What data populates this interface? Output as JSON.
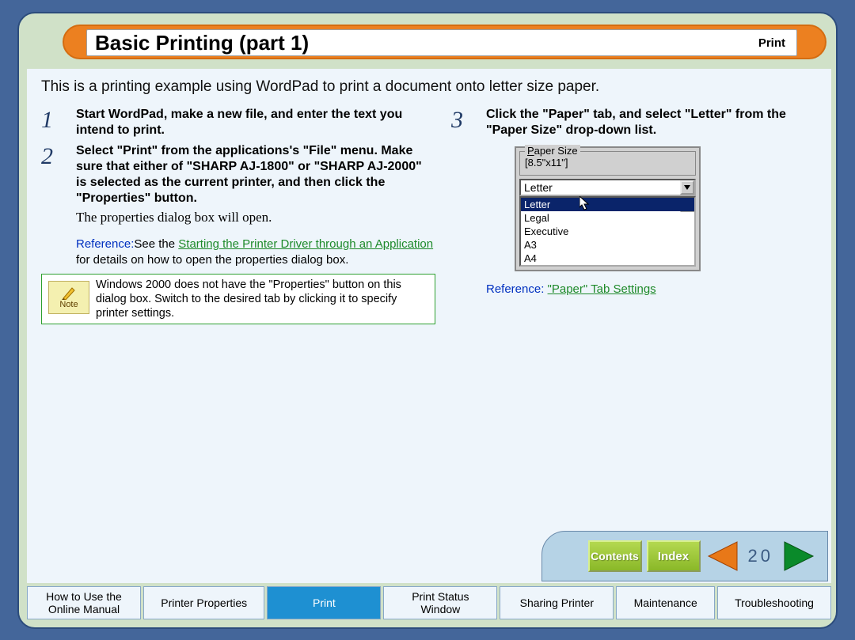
{
  "colors": {
    "page_bg": "#44669a",
    "panel_bg": "#d0e1c8",
    "content_bg": "#eef5fb",
    "title_pill": "#ec8020",
    "step_num": "#203a66",
    "ref_label": "#0030c0",
    "ref_link": "#1e8a2a",
    "nav_panel": "#b6d3e6",
    "btn_green_top": "#b4d850",
    "btn_green_bot": "#8ab828",
    "tab_active": "#1e90d2",
    "list_selected_bg": "#0a246a"
  },
  "title": "Basic Printing (part 1)",
  "section": "Print",
  "intro": "This is a printing example using WordPad to print a document onto letter size paper.",
  "steps": {
    "s1": {
      "num": "1",
      "text": "Start WordPad, make a new file, and enter the text you intend to print."
    },
    "s2": {
      "num": "2",
      "text": "Select \"Print\" from the applications's \"File\" menu. Make sure that either of \"SHARP AJ-1800\" or \"SHARP AJ-2000\" is selected as the current printer, and then click the \"Properties\" button.",
      "sub": "The properties dialog box will open."
    },
    "s3": {
      "num": "3",
      "text": "Click the \"Paper\" tab, and select \"Letter\" from the \"Paper Size\" drop-down list."
    }
  },
  "reference1": {
    "label": "Reference:",
    "prefix": "See the ",
    "link": "Starting the Printer Driver through an Application",
    "suffix": " for details on how to open the properties dialog box."
  },
  "note": {
    "label": "Note",
    "text": "Windows 2000 does not have the \"Properties\" button on this dialog box. Switch to the desired tab by clicking it to specify printer settings."
  },
  "paper_widget": {
    "group_label_pre": "P",
    "group_label_rest": "aper Size",
    "dimensions": "[8.5\"x11\"]",
    "combo_value": "Letter",
    "options": [
      "Letter",
      "Legal",
      "Executive",
      "A3",
      "A4"
    ],
    "selected_index": 0
  },
  "reference2": {
    "label": "Reference:",
    "link": "\"Paper\" Tab Settings"
  },
  "nav": {
    "contents": "Contents",
    "index": "Index",
    "page": "20",
    "prev_color": "#e87818",
    "next_color": "#0a8a2a"
  },
  "tabs": [
    {
      "label": "How to Use the\nOnline Manual",
      "active": false
    },
    {
      "label": "Printer Properties",
      "active": false
    },
    {
      "label": "Print",
      "active": true
    },
    {
      "label": "Print Status\nWindow",
      "active": false
    },
    {
      "label": "Sharing Printer",
      "active": false
    },
    {
      "label": "Maintenance",
      "active": false
    },
    {
      "label": "Troubleshooting",
      "active": false
    }
  ]
}
